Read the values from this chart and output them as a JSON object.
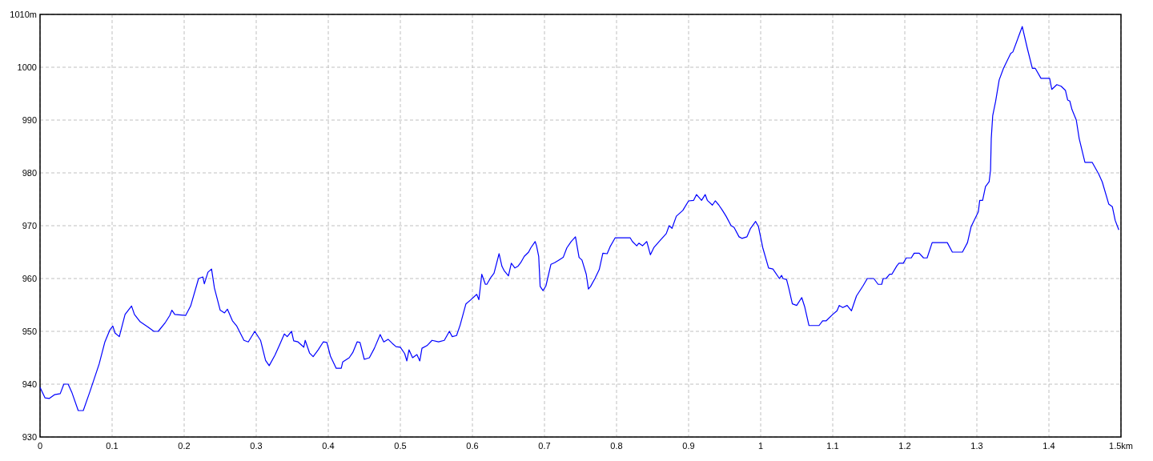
{
  "chart_data": {
    "type": "line",
    "xlim": [
      0,
      1.5
    ],
    "ylim": [
      930,
      1010
    ],
    "xticks": [
      0,
      0.1,
      0.2,
      0.3,
      0.4,
      0.5,
      0.6,
      0.7,
      0.8,
      0.9,
      1,
      1.1,
      1.2,
      1.3,
      1.4,
      {
        "value": 1.5,
        "label": "1.5km"
      }
    ],
    "yticks": [
      930,
      940,
      950,
      960,
      970,
      980,
      990,
      1000,
      {
        "value": 1010,
        "label": "1010m"
      }
    ],
    "grid": true,
    "line_style": "solid",
    "marker": "none",
    "series": [
      {
        "color": "#0000ff",
        "x": [
          0,
          0.007,
          0.013,
          0.02,
          0.028,
          0.033,
          0.039,
          0.044,
          0.053,
          0.06,
          0.069,
          0.082,
          0.09,
          0.097,
          0.101,
          0.104,
          0.11,
          0.118,
          0.127,
          0.131,
          0.139,
          0.15,
          0.158,
          0.164,
          0.174,
          0.18,
          0.183,
          0.187,
          0.202,
          0.209,
          0.22,
          0.226,
          0.228,
          0.233,
          0.238,
          0.242,
          0.25,
          0.256,
          0.26,
          0.267,
          0.273,
          0.283,
          0.289,
          0.298,
          0.306,
          0.313,
          0.318,
          0.326,
          0.333,
          0.339,
          0.343,
          0.349,
          0.352,
          0.358,
          0.366,
          0.368,
          0.374,
          0.379,
          0.386,
          0.393,
          0.398,
          0.403,
          0.411,
          0.418,
          0.42,
          0.429,
          0.434,
          0.44,
          0.444,
          0.45,
          0.457,
          0.464,
          0.472,
          0.477,
          0.483,
          0.489,
          0.494,
          0.5,
          0.506,
          0.509,
          0.512,
          0.517,
          0.523,
          0.527,
          0.53,
          0.537,
          0.544,
          0.553,
          0.561,
          0.568,
          0.572,
          0.578,
          0.583,
          0.591,
          0.598,
          0.606,
          0.609,
          0.613,
          0.618,
          0.62,
          0.626,
          0.63,
          0.637,
          0.641,
          0.644,
          0.65,
          0.654,
          0.659,
          0.663,
          0.667,
          0.672,
          0.678,
          0.681,
          0.687,
          0.689,
          0.692,
          0.694,
          0.698,
          0.702,
          0.709,
          0.714,
          0.72,
          0.726,
          0.731,
          0.737,
          0.743,
          0.748,
          0.752,
          0.758,
          0.761,
          0.764,
          0.77,
          0.776,
          0.781,
          0.787,
          0.791,
          0.798,
          0.819,
          0.822,
          0.828,
          0.831,
          0.836,
          0.842,
          0.847,
          0.852,
          0.859,
          0.869,
          0.873,
          0.877,
          0.883,
          0.892,
          0.9,
          0.907,
          0.911,
          0.918,
          0.923,
          0.926,
          0.933,
          0.937,
          0.942,
          0.947,
          0.952,
          0.959,
          0.963,
          0.97,
          0.974,
          0.981,
          0.986,
          0.993,
          0.997,
          1.003,
          1.011,
          1.017,
          1.026,
          1.029,
          1.031,
          1.036,
          1.039,
          1.044,
          1.05,
          1.057,
          1.061,
          1.067,
          1.081,
          1.086,
          1.091,
          1.1,
          1.106,
          1.109,
          1.114,
          1.12,
          1.126,
          1.133,
          1.142,
          1.148,
          1.157,
          1.163,
          1.168,
          1.17,
          1.174,
          1.179,
          1.182,
          1.189,
          1.192,
          1.198,
          1.202,
          1.209,
          1.213,
          1.22,
          1.226,
          1.231,
          1.238,
          1.259,
          1.266,
          1.28,
          1.287,
          1.292,
          1.302,
          1.304,
          1.308,
          1.312,
          1.317,
          1.319,
          1.32,
          1.322,
          1.326,
          1.331,
          1.337,
          1.347,
          1.35,
          1.363,
          1.37,
          1.377,
          1.381,
          1.389,
          1.401,
          1.404,
          1.411,
          1.417,
          1.423,
          1.426,
          1.429,
          1.432,
          1.438,
          1.442,
          1.45,
          1.46,
          1.469,
          1.474,
          1.483,
          1.488,
          1.492,
          1.497
        ],
        "values": [
          939.4,
          937.4,
          937.3,
          938,
          938.2,
          940,
          940,
          938.5,
          935,
          935,
          938.5,
          943.8,
          948,
          950.3,
          951,
          949.7,
          949,
          953.2,
          954.8,
          953.2,
          951.8,
          950.8,
          950,
          950,
          951.7,
          953,
          954,
          953.2,
          953,
          954.8,
          960,
          960.3,
          959,
          961.2,
          961.8,
          958.2,
          954,
          953.5,
          954.2,
          952,
          951,
          948.3,
          948,
          950,
          948.3,
          944.5,
          943.5,
          945.5,
          947.6,
          949.5,
          949,
          950,
          948.2,
          948,
          947,
          948.3,
          945.9,
          945.2,
          946.5,
          948,
          947.9,
          945.3,
          943,
          943,
          944.2,
          945,
          946,
          948,
          947.9,
          944.7,
          945,
          946.8,
          949.4,
          948,
          948.5,
          947.7,
          947.1,
          947,
          945.8,
          944.4,
          946.5,
          945,
          945.6,
          944.4,
          946.8,
          947.3,
          948.3,
          948,
          948.3,
          950,
          949,
          949.2,
          951.2,
          955.2,
          956,
          957,
          956,
          960.8,
          958.9,
          958.9,
          960.3,
          961,
          964.7,
          962.3,
          961.5,
          960.5,
          962.9,
          962,
          962.3,
          963,
          964.2,
          965,
          965.8,
          967,
          966.2,
          964.2,
          958.5,
          957.7,
          958.6,
          962.7,
          963,
          963.5,
          964,
          965.8,
          967,
          967.9,
          964,
          963.5,
          960.8,
          958,
          958.5,
          960,
          961.7,
          964.8,
          964.7,
          966,
          967.7,
          967.7,
          967,
          966.2,
          966.7,
          966.2,
          967,
          964.5,
          965.9,
          967,
          968.5,
          970,
          969.5,
          971.8,
          972.9,
          974.7,
          974.8,
          975.9,
          974.8,
          975.9,
          974.8,
          973.9,
          974.7,
          973.9,
          972.9,
          971.8,
          970,
          969.7,
          967.9,
          967.6,
          967.9,
          969.5,
          970.8,
          969.8,
          965.8,
          962,
          961.8,
          960,
          960.6,
          960,
          959.8,
          958.2,
          955.2,
          954.9,
          956.4,
          954.7,
          951.1,
          951.1,
          952,
          952,
          953.2,
          953.9,
          954.9,
          954.5,
          954.9,
          953.9,
          956.7,
          958.6,
          960,
          960,
          958.9,
          958.9,
          960,
          960,
          960.8,
          960.8,
          962.4,
          962.9,
          962.9,
          963.9,
          963.9,
          964.8,
          964.8,
          963.9,
          963.9,
          966.8,
          966.8,
          965,
          965,
          966.8,
          969.8,
          972.6,
          974.8,
          974.8,
          977.4,
          978.3,
          980.5,
          986.5,
          990.8,
          993.5,
          997.6,
          999.8,
          1002.6,
          1002.9,
          1007.7,
          1003.6,
          999.8,
          999.8,
          997.9,
          997.9,
          995.8,
          996.7,
          996.4,
          995.6,
          993.8,
          993.6,
          992,
          990,
          986.5,
          982,
          982,
          979.8,
          978.3,
          974.1,
          973.6,
          971,
          969.2
        ]
      }
    ]
  }
}
